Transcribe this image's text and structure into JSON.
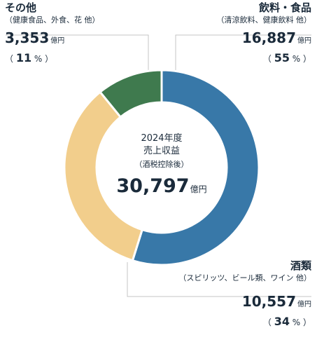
{
  "chart_data": {
    "type": "donut",
    "center": {
      "year": "2024年度",
      "title": "売上収益",
      "subtitle": "（酒税控除後）",
      "total": "30,797",
      "unit": "億円"
    },
    "segments": [
      {
        "name": "飲料・食品",
        "sub": "（清涼飲料、健康飲料 他）",
        "value": 16887,
        "value_label": "16,887",
        "unit": "億円",
        "percent": 55,
        "color": "#3878a8"
      },
      {
        "name": "酒類",
        "sub": "（スピリッツ、ビール類、ワイン 他）",
        "value": 10557,
        "value_label": "10,557",
        "unit": "億円",
        "percent": 34,
        "color": "#f2ce8c"
      },
      {
        "name": "その他",
        "sub": "（健康食品、外食、花 他）",
        "value": 3353,
        "value_label": "3,353",
        "unit": "億円",
        "percent": 11,
        "color": "#3f7a4e"
      }
    ]
  }
}
